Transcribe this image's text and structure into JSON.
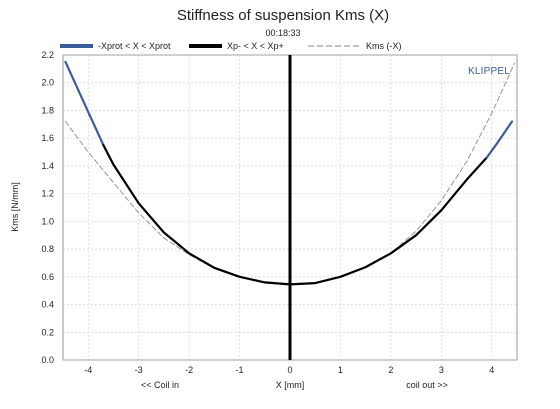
{
  "chart_data": {
    "type": "line",
    "title": "Stiffness of suspension Kms (X)",
    "subtitle": "00:18:33",
    "watermark": "KLIPPEL",
    "xlabel": "X [mm]",
    "xlabel_left": "<< Coil in",
    "xlabel_right": "coil out >>",
    "ylabel": "Kms [N/mm]",
    "xlim": [
      -4.5,
      4.5
    ],
    "ylim": [
      0.0,
      2.2
    ],
    "xticks": [
      -4,
      -3,
      -2,
      -1,
      0,
      1,
      2,
      3,
      4
    ],
    "yticks": [
      0.0,
      0.2,
      0.4,
      0.6,
      0.8,
      1.0,
      1.2,
      1.4,
      1.6,
      1.8,
      2.0,
      2.2
    ],
    "grid": true,
    "legend_position": "top",
    "colors": {
      "prot": "#3b5b9a",
      "main": "#000000",
      "mirror": "#8a8a8a",
      "grid": "#bdbdbd",
      "zero_line": "#000000",
      "watermark": "#3b5b9a"
    },
    "series": [
      {
        "name": "-Xprot < X < Xprot",
        "style": "solid-thick",
        "x": [
          -4.45,
          -4.2,
          -3.95,
          -3.7
        ],
        "y": [
          2.15,
          1.95,
          1.75,
          1.55
        ]
      },
      {
        "name": "Xp- < X < Xp+",
        "style": "solid-thick",
        "x": [
          -3.7,
          -3.5,
          -3.0,
          -2.5,
          -2.0,
          -1.5,
          -1.0,
          -0.5,
          0.0,
          0.5,
          1.0,
          1.5,
          2.0,
          2.5,
          3.0,
          3.5,
          3.9
        ],
        "y": [
          1.55,
          1.41,
          1.13,
          0.92,
          0.77,
          0.665,
          0.6,
          0.56,
          0.545,
          0.555,
          0.6,
          0.67,
          0.77,
          0.9,
          1.08,
          1.3,
          1.46
        ]
      },
      {
        "name": "",
        "style": "solid-thick",
        "x": [
          3.9,
          4.1,
          4.25,
          4.4
        ],
        "y": [
          1.46,
          1.56,
          1.64,
          1.72
        ]
      },
      {
        "name": "Kms (-X)",
        "style": "dashed-thin",
        "x": [
          -4.45,
          -4.0,
          -3.5,
          -3.0,
          -2.5,
          -2.0,
          -1.5,
          -1.0,
          -0.5,
          0.0,
          0.5,
          1.0,
          1.5,
          2.0,
          2.5,
          3.0,
          3.5,
          4.0,
          4.45
        ],
        "y": [
          1.72,
          1.5,
          1.28,
          1.06,
          0.88,
          0.76,
          0.66,
          0.6,
          0.555,
          0.545,
          0.56,
          0.6,
          0.67,
          0.77,
          0.93,
          1.15,
          1.43,
          1.78,
          2.14
        ]
      }
    ]
  }
}
